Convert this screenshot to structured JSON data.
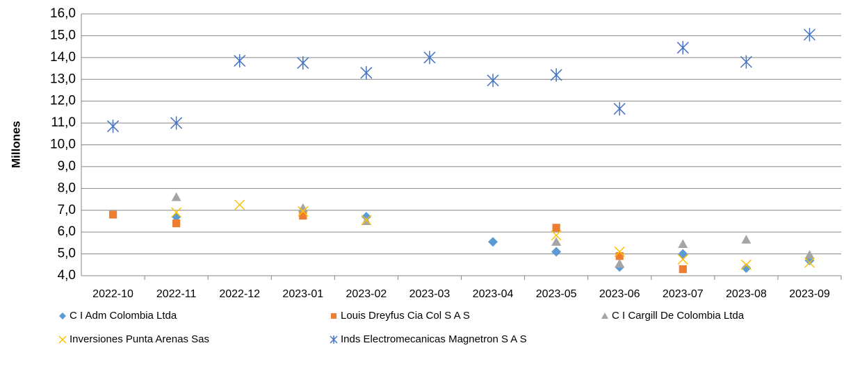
{
  "chart_data": {
    "type": "scatter",
    "y_label": "Millones",
    "categories": [
      "2022-10",
      "2022-11",
      "2022-12",
      "2023-01",
      "2023-02",
      "2023-03",
      "2023-04",
      "2023-05",
      "2023-06",
      "2023-07",
      "2023-08",
      "2023-09"
    ],
    "ylim": [
      4,
      16
    ],
    "yticks": [
      {
        "value": 4,
        "label": "4,0"
      },
      {
        "value": 5,
        "label": "5,0"
      },
      {
        "value": 6,
        "label": "6,0"
      },
      {
        "value": 7,
        "label": "7,0"
      },
      {
        "value": 8,
        "label": "8,0"
      },
      {
        "value": 9,
        "label": "9,0"
      },
      {
        "value": 10,
        "label": "10,0"
      },
      {
        "value": 11,
        "label": "11,0"
      },
      {
        "value": 12,
        "label": "12,0"
      },
      {
        "value": 13,
        "label": "13,0"
      },
      {
        "value": 14,
        "label": "14,0"
      },
      {
        "value": 15,
        "label": "15,0"
      },
      {
        "value": 16,
        "label": "16,0"
      }
    ],
    "grid": true,
    "legend": "bottom",
    "series": [
      {
        "name": "C I Adm Colombia Ltda",
        "color": "#5b9bd5",
        "marker": "diamond",
        "values": [
          null,
          6.7,
          null,
          null,
          6.7,
          null,
          5.55,
          5.1,
          4.4,
          5.0,
          4.35,
          4.7
        ]
      },
      {
        "name": "Louis Dreyfus Cia Col S A S",
        "color": "#ed7d31",
        "marker": "square",
        "values": [
          6.8,
          6.4,
          null,
          6.75,
          null,
          null,
          null,
          6.2,
          4.9,
          4.3,
          null,
          null
        ]
      },
      {
        "name": "C I Cargill De Colombia Ltda",
        "color": "#a5a5a5",
        "marker": "triangle",
        "values": [
          null,
          7.6,
          null,
          7.1,
          6.5,
          null,
          null,
          5.55,
          4.55,
          5.45,
          5.65,
          4.95
        ]
      },
      {
        "name": "Inversiones Punta Arenas Sas",
        "color": "#ffc000",
        "marker": "x",
        "values": [
          null,
          6.9,
          7.25,
          6.95,
          6.55,
          null,
          null,
          5.85,
          5.1,
          4.75,
          4.5,
          4.6
        ]
      },
      {
        "name": "Inds Electromecanicas Magnetron S A S",
        "color": "#4472c4",
        "marker": "star",
        "values": [
          10.85,
          11.0,
          13.85,
          13.75,
          13.3,
          14.0,
          12.95,
          13.2,
          11.65,
          14.45,
          13.8,
          15.05
        ]
      }
    ]
  }
}
